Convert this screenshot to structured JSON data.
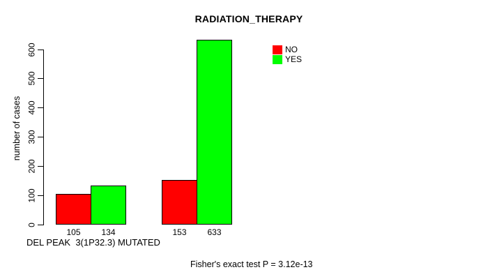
{
  "chart_data": {
    "type": "bar",
    "title": "RADIATION_THERAPY",
    "ylabel": "number of cases",
    "xlabel": "DEL PEAK  3(1P32.3) MUTATED",
    "footnote": "Fisher's exact test P = 3.12e-13",
    "ylim": [
      0,
      600
    ],
    "yticks": [
      0,
      100,
      200,
      300,
      400,
      500,
      600
    ],
    "categories": [
      "",
      ""
    ],
    "series": [
      {
        "name": "NO",
        "color": "#ff0000",
        "values": [
          105,
          153
        ]
      },
      {
        "name": "YES",
        "color": "#00ff00",
        "values": [
          134,
          633
        ]
      }
    ],
    "bar_labels": [
      "105",
      "134",
      "153",
      "633"
    ],
    "legend_position": "top-right",
    "grid": false,
    "background": "#ffffff",
    "axis_color": "#000000"
  }
}
